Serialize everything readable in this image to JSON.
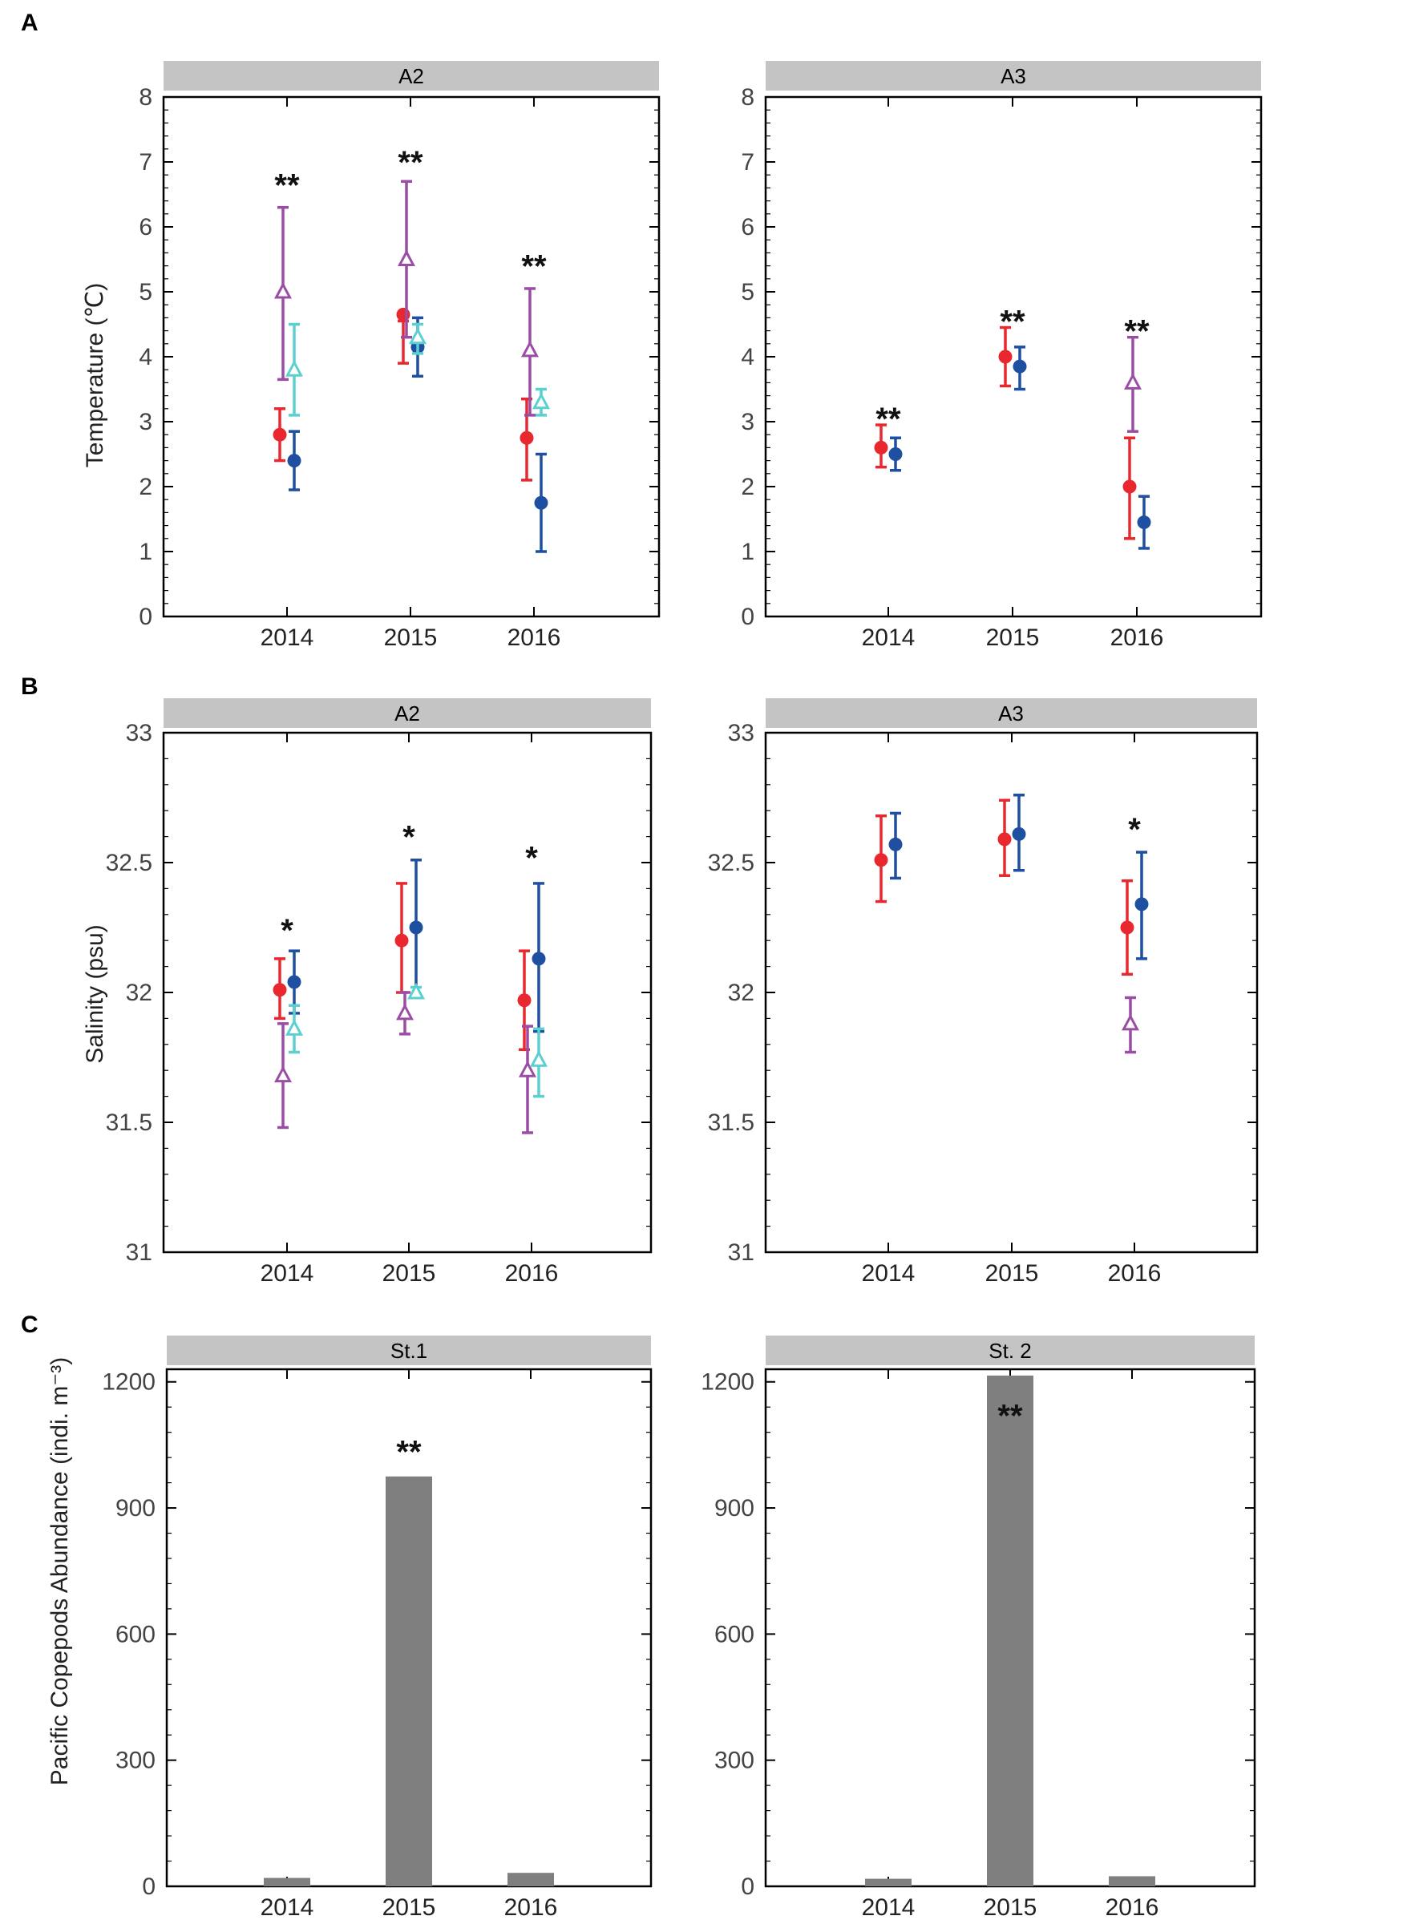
{
  "colors": {
    "panel_header": "#c4c4c4",
    "group_red": "#e8282e",
    "group_blue": "#1f4fa0",
    "group_purple": "#9b4da6",
    "group_cyan": "#5ccfcf",
    "bar_fill": "#7f7f7f",
    "axis": "#000000",
    "tick_label": "#444444"
  },
  "panel_labels": [
    "A",
    "B",
    "C"
  ],
  "chart_data": [
    {
      "id": "A-A2",
      "type": "scatter",
      "title": "A2",
      "ylabel": "Temperature (℃)",
      "ylim": [
        0,
        8
      ],
      "yticks": [
        0,
        1,
        2,
        3,
        4,
        5,
        6,
        7,
        8
      ],
      "categories": [
        "2014",
        "2015",
        "2016"
      ],
      "series": [
        {
          "name": "red",
          "color": "#e8282e",
          "marker": "circle",
          "points": [
            {
              "x": "2014",
              "y": 2.8,
              "lo": 2.4,
              "hi": 3.2
            },
            {
              "x": "2015",
              "y": 4.65,
              "lo": 3.9,
              "hi": 4.55
            },
            {
              "x": "2016",
              "y": 2.75,
              "lo": 2.1,
              "hi": 3.35
            }
          ]
        },
        {
          "name": "blue",
          "color": "#1f4fa0",
          "marker": "circle",
          "points": [
            {
              "x": "2014",
              "y": 2.4,
              "lo": 1.95,
              "hi": 2.85
            },
            {
              "x": "2015",
              "y": 4.15,
              "lo": 3.7,
              "hi": 4.6
            },
            {
              "x": "2016",
              "y": 1.75,
              "lo": 1.0,
              "hi": 2.5
            }
          ]
        },
        {
          "name": "purple",
          "color": "#9b4da6",
          "marker": "triangle",
          "points": [
            {
              "x": "2014",
              "y": 5.0,
              "lo": 3.65,
              "hi": 6.3
            },
            {
              "x": "2015",
              "y": 5.5,
              "lo": 4.3,
              "hi": 6.7
            },
            {
              "x": "2016",
              "y": 4.1,
              "lo": 3.1,
              "hi": 5.05
            }
          ]
        },
        {
          "name": "cyan",
          "color": "#5ccfcf",
          "marker": "triangle",
          "points": [
            {
              "x": "2014",
              "y": 3.8,
              "lo": 3.1,
              "hi": 4.5
            },
            {
              "x": "2015",
              "y": 4.3,
              "lo": 4.05,
              "hi": 4.5
            },
            {
              "x": "2016",
              "y": 3.3,
              "lo": 3.1,
              "hi": 3.5
            }
          ]
        }
      ],
      "annotations": [
        {
          "x": "2014",
          "y": 6.65,
          "text": "**"
        },
        {
          "x": "2015",
          "y": 7.0,
          "text": "**"
        },
        {
          "x": "2016",
          "y": 5.4,
          "text": "**"
        }
      ]
    },
    {
      "id": "A-A3",
      "type": "scatter",
      "title": "A3",
      "ylabel": "",
      "ylim": [
        0,
        8
      ],
      "yticks": [
        0,
        1,
        2,
        3,
        4,
        5,
        6,
        7,
        8
      ],
      "categories": [
        "2014",
        "2015",
        "2016"
      ],
      "series": [
        {
          "name": "red",
          "color": "#e8282e",
          "marker": "circle",
          "points": [
            {
              "x": "2014",
              "y": 2.6,
              "lo": 2.3,
              "hi": 2.95
            },
            {
              "x": "2015",
              "y": 4.0,
              "lo": 3.55,
              "hi": 4.45
            },
            {
              "x": "2016",
              "y": 2.0,
              "lo": 1.2,
              "hi": 2.75
            }
          ]
        },
        {
          "name": "blue",
          "color": "#1f4fa0",
          "marker": "circle",
          "points": [
            {
              "x": "2014",
              "y": 2.5,
              "lo": 2.25,
              "hi": 2.75
            },
            {
              "x": "2015",
              "y": 3.85,
              "lo": 3.5,
              "hi": 4.15
            },
            {
              "x": "2016",
              "y": 1.45,
              "lo": 1.05,
              "hi": 1.85
            }
          ]
        },
        {
          "name": "purple",
          "color": "#9b4da6",
          "marker": "triangle",
          "points": [
            {
              "x": "2016",
              "y": 3.6,
              "lo": 2.85,
              "hi": 4.3
            }
          ]
        }
      ],
      "annotations": [
        {
          "x": "2014",
          "y": 3.05,
          "text": "**"
        },
        {
          "x": "2015",
          "y": 4.55,
          "text": "**"
        },
        {
          "x": "2016",
          "y": 4.4,
          "text": "**"
        }
      ]
    },
    {
      "id": "B-A2",
      "type": "scatter",
      "title": "A2",
      "ylabel": "Salinity (psu)",
      "ylim": [
        31,
        33
      ],
      "yticks": [
        31,
        31.5,
        32,
        32.5,
        33
      ],
      "categories": [
        "2014",
        "2015",
        "2016"
      ],
      "series": [
        {
          "name": "red",
          "color": "#e8282e",
          "marker": "circle",
          "points": [
            {
              "x": "2014",
              "y": 32.01,
              "lo": 31.9,
              "hi": 32.13
            },
            {
              "x": "2015",
              "y": 32.2,
              "lo": 32.0,
              "hi": 32.42
            },
            {
              "x": "2016",
              "y": 31.97,
              "lo": 31.78,
              "hi": 32.16
            }
          ]
        },
        {
          "name": "blue",
          "color": "#1f4fa0",
          "marker": "circle",
          "points": [
            {
              "x": "2014",
              "y": 32.04,
              "lo": 31.92,
              "hi": 32.16
            },
            {
              "x": "2015",
              "y": 32.25,
              "lo": 31.98,
              "hi": 32.51
            },
            {
              "x": "2016",
              "y": 32.13,
              "lo": 31.85,
              "hi": 32.42
            }
          ]
        },
        {
          "name": "purple",
          "color": "#9b4da6",
          "marker": "triangle",
          "points": [
            {
              "x": "2014",
              "y": 31.68,
              "lo": 31.48,
              "hi": 31.88
            },
            {
              "x": "2015",
              "y": 31.92,
              "lo": 31.84,
              "hi": 32.0
            },
            {
              "x": "2016",
              "y": 31.7,
              "lo": 31.46,
              "hi": 31.87
            }
          ]
        },
        {
          "name": "cyan",
          "color": "#5ccfcf",
          "marker": "triangle",
          "points": [
            {
              "x": "2014",
              "y": 31.86,
              "lo": 31.77,
              "hi": 31.95
            },
            {
              "x": "2015",
              "y": 32.0,
              "lo": 31.98,
              "hi": 32.02
            },
            {
              "x": "2016",
              "y": 31.74,
              "lo": 31.6,
              "hi": 31.86
            }
          ]
        }
      ],
      "annotations": [
        {
          "x": "2014",
          "y": 32.24,
          "text": "*"
        },
        {
          "x": "2015",
          "y": 32.6,
          "text": "*"
        },
        {
          "x": "2016",
          "y": 32.52,
          "text": "*"
        }
      ]
    },
    {
      "id": "B-A3",
      "type": "scatter",
      "title": "A3",
      "ylabel": "",
      "ylim": [
        31,
        33
      ],
      "yticks": [
        31,
        31.5,
        32,
        32.5,
        33
      ],
      "categories": [
        "2014",
        "2015",
        "2016"
      ],
      "series": [
        {
          "name": "red",
          "color": "#e8282e",
          "marker": "circle",
          "points": [
            {
              "x": "2014",
              "y": 32.51,
              "lo": 32.35,
              "hi": 32.68
            },
            {
              "x": "2015",
              "y": 32.59,
              "lo": 32.45,
              "hi": 32.74
            },
            {
              "x": "2016",
              "y": 32.25,
              "lo": 32.07,
              "hi": 32.43
            }
          ]
        },
        {
          "name": "blue",
          "color": "#1f4fa0",
          "marker": "circle",
          "points": [
            {
              "x": "2014",
              "y": 32.57,
              "lo": 32.44,
              "hi": 32.69
            },
            {
              "x": "2015",
              "y": 32.61,
              "lo": 32.47,
              "hi": 32.76
            },
            {
              "x": "2016",
              "y": 32.34,
              "lo": 32.13,
              "hi": 32.54
            }
          ]
        },
        {
          "name": "purple",
          "color": "#9b4da6",
          "marker": "triangle",
          "points": [
            {
              "x": "2016",
              "y": 31.88,
              "lo": 31.77,
              "hi": 31.98
            }
          ]
        }
      ],
      "annotations": [
        {
          "x": "2016",
          "y": 32.63,
          "text": "*"
        }
      ]
    },
    {
      "id": "C-St1",
      "type": "bar",
      "title": "St.1",
      "ylabel": "Pacific Copepods Abundance (indi. m⁻³)",
      "ylim": [
        0,
        1230
      ],
      "yticks": [
        0,
        300,
        600,
        900,
        1200
      ],
      "categories": [
        "2014",
        "2015",
        "2016"
      ],
      "values": [
        20,
        975,
        32
      ],
      "annotations": [
        {
          "x": "2015",
          "y": 1035,
          "text": "**"
        }
      ]
    },
    {
      "id": "C-St2",
      "type": "bar",
      "title": "St. 2",
      "ylabel": "",
      "ylim": [
        0,
        1230
      ],
      "yticks": [
        0,
        300,
        600,
        900,
        1200
      ],
      "categories": [
        "2014",
        "2015",
        "2016"
      ],
      "values": [
        18,
        1215,
        24
      ],
      "annotations": [
        {
          "x": "2015",
          "y": 1120,
          "text": "**"
        }
      ]
    }
  ]
}
